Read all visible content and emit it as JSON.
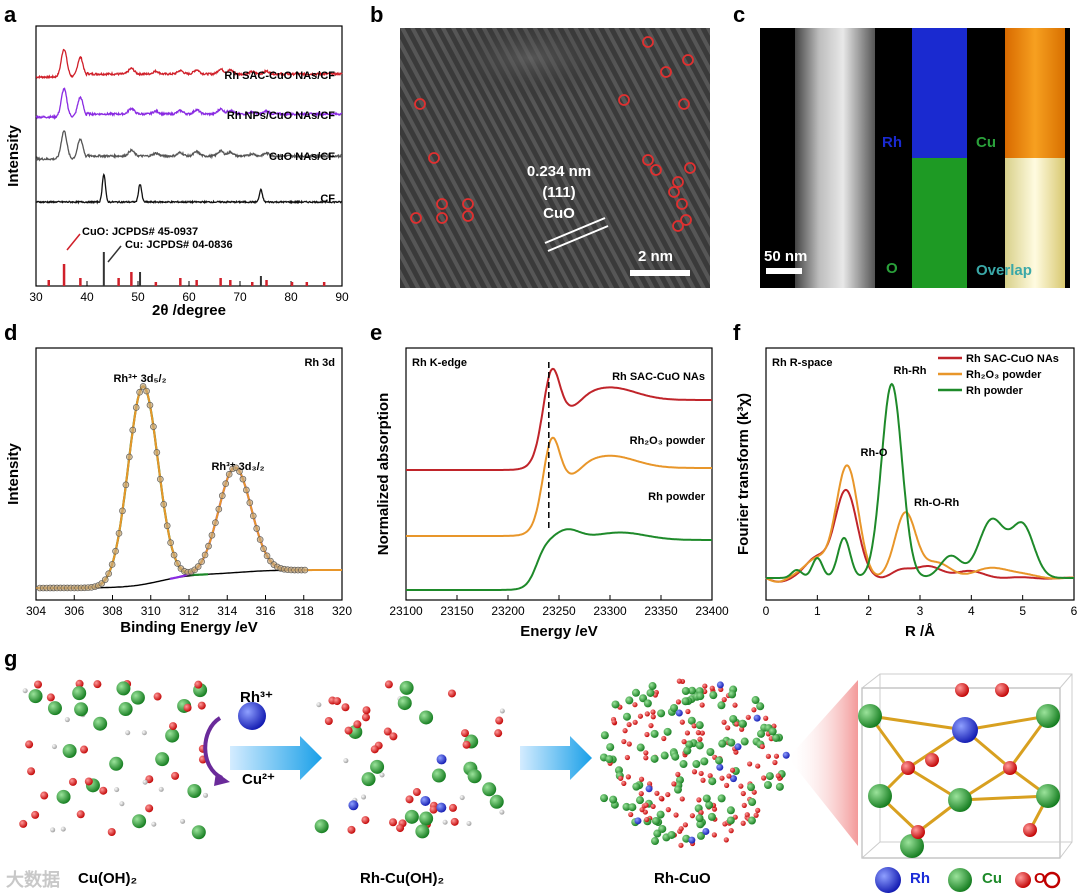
{
  "panel_letters": {
    "a": "a",
    "b": "b",
    "c": "c",
    "d": "d",
    "e": "e",
    "f": "f",
    "g": "g"
  },
  "colors": {
    "red": "#d0202a",
    "purple": "#8a2be2",
    "gray": "#555555",
    "black": "#111111",
    "orange": "#e8962a",
    "green": "#1e8a2a",
    "blue": "#1a2bd8"
  },
  "panel_b": {
    "d_spacing": "0.234 nm",
    "plane": "(111)",
    "phase": "CuO",
    "scale": "2 nm"
  },
  "panel_c": {
    "scale": "50 nm",
    "maps": {
      "rh": "Rh",
      "cu": "Cu",
      "o": "O",
      "overlap": "Overlap"
    }
  },
  "panel_g": {
    "ion_rh": "Rh³⁺",
    "ion_cu": "Cu²⁺",
    "step1": "Cu(OH)₂",
    "step2": "Rh-Cu(OH)₂",
    "step3": "Rh-CuO",
    "legend": {
      "rh": "Rh",
      "cu": "Cu",
      "o": "O"
    }
  },
  "watermark": "大数据",
  "chart_data": [
    {
      "id": "a",
      "type": "line",
      "xlabel": "2θ /degree",
      "ylabel": "Intensity",
      "xlim": [
        30,
        90
      ],
      "xticks": [
        30,
        40,
        50,
        60,
        70,
        80,
        90
      ],
      "series": [
        {
          "name": "Rh SAC-CuO NAs/CF",
          "color": "#d0202a"
        },
        {
          "name": "Rh NPs/CuO NAs/CF",
          "color": "#8a2be2"
        },
        {
          "name": "CuO NAs/CF",
          "color": "#555555"
        },
        {
          "name": "CF",
          "color": "#111111"
        }
      ],
      "references": [
        {
          "name": "CuO: JCPDS# 45-0937",
          "color": "#d0202a",
          "peaks": [
            32.5,
            35.5,
            38.7,
            46.2,
            48.7,
            53.5,
            58.3,
            61.5,
            66.2,
            68.1,
            72.4,
            75.2,
            80.2,
            83.1,
            86.5
          ]
        },
        {
          "name": "Cu: JCPDS# 04-0836",
          "color": "#333333",
          "peaks": [
            43.3,
            50.4,
            74.1
          ]
        }
      ]
    },
    {
      "id": "d",
      "type": "line",
      "title": "Rh 3d",
      "xlabel": "Binding Energy /eV",
      "ylabel": "Intensity",
      "xlim": [
        304,
        320
      ],
      "xticks": [
        304,
        306,
        308,
        310,
        312,
        314,
        316,
        318,
        320
      ],
      "peaks": [
        {
          "label": "Rh³⁺ 3d₅/₂",
          "center": 309.6,
          "color": "#e8962a"
        },
        {
          "label": "Rh³⁺ 3d₃/₂",
          "center": 314.4,
          "color": "#8a2be2"
        }
      ]
    },
    {
      "id": "e",
      "type": "line",
      "title": "Rh K-edge",
      "xlabel": "Energy /eV",
      "ylabel": "Normalized absorption",
      "xlim": [
        23100,
        23400
      ],
      "xticks": [
        23100,
        23150,
        23200,
        23250,
        23300,
        23350,
        23400
      ],
      "edge_marker": 23240,
      "series": [
        {
          "name": "Rh SAC-CuO NAs",
          "color": "#c0242a"
        },
        {
          "name": "Rh₂O₃ powder",
          "color": "#e8962a"
        },
        {
          "name": "Rh powder",
          "color": "#1e8a2a"
        }
      ]
    },
    {
      "id": "f",
      "type": "line",
      "title": "Rh R-space",
      "xlabel": "R /Å",
      "ylabel": "Fourier transform (k³χ)",
      "xlim": [
        0,
        6
      ],
      "xticks": [
        0,
        1,
        2,
        3,
        4,
        5,
        6
      ],
      "series": [
        {
          "name": "Rh SAC-CuO NAs",
          "color": "#c0242a"
        },
        {
          "name": "Rh₂O₃ powder",
          "color": "#e8962a"
        },
        {
          "name": "Rh powder",
          "color": "#1e8a2a"
        }
      ],
      "annotations": [
        {
          "text": "Rh-O",
          "r": 1.55
        },
        {
          "text": "Rh-Rh",
          "r": 2.45
        },
        {
          "text": "Rh-O-Rh",
          "r": 2.75
        }
      ]
    }
  ]
}
